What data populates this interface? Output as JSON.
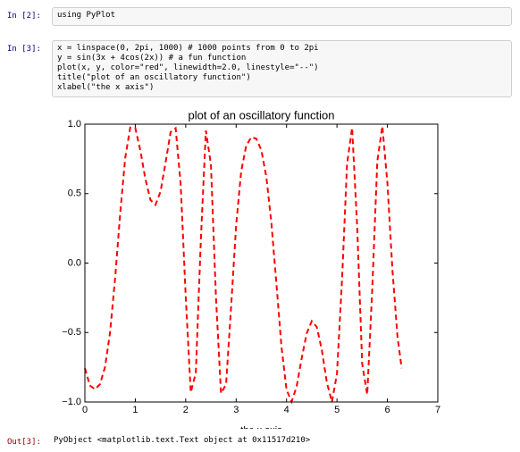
{
  "cells": [
    {
      "prompt": "In [2]:",
      "code": [
        "using PyPlot"
      ]
    },
    {
      "prompt": "In [3]:",
      "code": [
        "x = linspace(0, 2pi, 1000) # 1000 points from 0 to 2pi",
        "y = sin(3x + 4cos(2x)) # a fun function",
        "plot(x, y, color=\"red\", linewidth=2.0, linestyle=\"--\")",
        "title(\"plot of an oscillatory function\")",
        "xlabel(\"the x axis\")"
      ]
    }
  ],
  "output": {
    "prompt": "Out[3]:",
    "text": "PyObject <matplotlib.text.Text object at 0x11517d210>"
  },
  "chart_data": {
    "type": "line",
    "title": "plot of an oscillatory function",
    "x_label": "the x axis",
    "x": [
      0,
      0.1,
      0.2,
      0.3,
      0.4,
      0.5,
      0.6,
      0.7,
      0.8,
      0.9,
      1.0,
      1.1,
      1.2,
      1.3,
      1.4,
      1.5,
      1.6,
      1.7,
      1.8,
      1.9,
      2.0,
      2.1,
      2.2,
      2.3,
      2.4,
      2.5,
      2.6,
      2.7,
      2.8,
      2.9,
      3.0,
      3.1,
      3.2,
      3.3,
      3.4,
      3.5,
      3.6,
      3.7,
      3.8,
      3.9,
      4.0,
      4.1,
      4.2,
      4.3,
      4.4,
      4.5,
      4.6,
      4.7,
      4.8,
      4.9,
      5.0,
      5.1,
      5.2,
      5.3,
      5.4,
      5.5,
      5.6,
      5.7,
      5.8,
      5.9,
      6.0,
      6.1,
      6.2,
      6.283
    ],
    "values": [
      -0.757,
      -0.881,
      -0.909,
      -0.872,
      -0.748,
      -0.497,
      -0.108,
      0.354,
      0.757,
      0.976,
      0.972,
      0.811,
      0.606,
      0.455,
      0.419,
      0.514,
      0.722,
      0.943,
      0.971,
      0.569,
      -0.241,
      -0.931,
      -0.791,
      0.167,
      0.954,
      0.71,
      -0.247,
      -0.938,
      -0.874,
      -0.317,
      0.272,
      0.66,
      0.845,
      0.906,
      0.896,
      0.813,
      0.619,
      0.286,
      -0.153,
      -0.605,
      -0.912,
      -0.998,
      -0.889,
      -0.686,
      -0.506,
      -0.418,
      -0.46,
      -0.626,
      -0.861,
      -1.0,
      -0.797,
      -0.123,
      0.714,
      0.974,
      0.272,
      -0.724,
      -0.947,
      -0.186,
      0.733,
      0.986,
      0.578,
      -0.049,
      -0.528,
      -0.757
    ],
    "color": "red",
    "line_style": "dashed",
    "xlim": [
      0,
      7
    ],
    "xticks": [
      0,
      1,
      2,
      3,
      4,
      5,
      6,
      7
    ],
    "ylim": [
      -1,
      1
    ],
    "yticks": [
      {
        "value": -1,
        "label": "−1.0"
      },
      {
        "value": -0.5,
        "label": "−0.5"
      },
      {
        "value": 0,
        "label": "0.0"
      },
      {
        "value": 0.5,
        "label": "0.5"
      },
      {
        "value": 1,
        "label": "1.0"
      }
    ]
  }
}
